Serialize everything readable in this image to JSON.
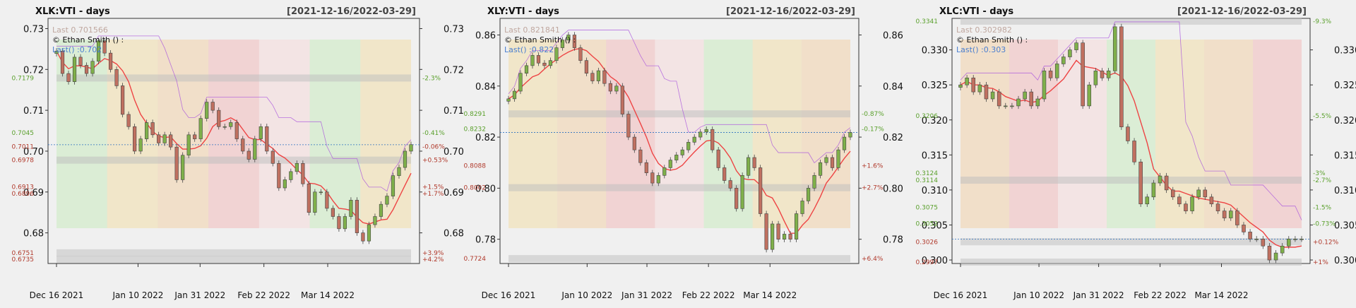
{
  "panels": [
    {
      "title": "XLK:VTI - days",
      "range": "[2021-12-16/2022-03-29]",
      "credit": "© Ethan Smith () :",
      "last_label": "Last 0.701566",
      "last_short": "Last() :0.702",
      "y_ticks": [
        "0.73",
        "0.72",
        "0.71",
        "0.70",
        "0.69",
        "0.68"
      ],
      "x_ticks": [
        "Dec 16 2021",
        "Jan 10 2022",
        "Jan 31 2022",
        "Feb 22 2022",
        "Mar 14 2022"
      ],
      "left_labels": [
        {
          "text": "0.7179",
          "color": "#5aa02c"
        },
        {
          "text": "0.7045",
          "color": "#5aa02c"
        },
        {
          "text": "0.7011",
          "color": "#b0392b"
        },
        {
          "text": "0.6978",
          "color": "#b0392b"
        },
        {
          "text": "0.6913",
          "color": "#b0392b"
        },
        {
          "text": "0.6896",
          "color": "#b0392b"
        },
        {
          "text": "0.6751",
          "color": "#b0392b"
        },
        {
          "text": "0.6735",
          "color": "#b0392b"
        }
      ],
      "right_labels": [
        {
          "text": "-2.3%",
          "color": "#5aa02c"
        },
        {
          "text": "-0.41%",
          "color": "#5aa02c"
        },
        {
          "text": "-0.06%",
          "color": "#b0392b"
        },
        {
          "text": "+0.53%",
          "color": "#b0392b"
        },
        {
          "text": "+1.5%",
          "color": "#b0392b"
        },
        {
          "text": "+1.7%",
          "color": "#b0392b"
        },
        {
          "text": "+3.9%",
          "color": "#b0392b"
        },
        {
          "text": "+4.2%",
          "color": "#b0392b"
        }
      ]
    },
    {
      "title": "XLY:VTI - days",
      "range": "[2021-12-16/2022-03-29]",
      "credit": "© Ethan Smith () :",
      "last_label": "Last 0.821841",
      "last_short": "Last() :0.822",
      "y_ticks": [
        "0.86",
        "0.84",
        "0.82",
        "0.80",
        "0.78"
      ],
      "x_ticks": [
        "Dec 16 2021",
        "Jan 10 2022",
        "Jan 31 2022",
        "Feb 22 2022",
        "Mar 14 2022"
      ],
      "left_labels": [
        {
          "text": "0.8291",
          "color": "#5aa02c"
        },
        {
          "text": "0.8232",
          "color": "#5aa02c"
        },
        {
          "text": "0.8088",
          "color": "#b0392b"
        },
        {
          "text": "0.8002",
          "color": "#b0392b"
        },
        {
          "text": "0.7724",
          "color": "#b0392b"
        }
      ],
      "right_labels": [
        {
          "text": "-0.87%",
          "color": "#5aa02c"
        },
        {
          "text": "-0.17%",
          "color": "#5aa02c"
        },
        {
          "text": "+1.6%",
          "color": "#b0392b"
        },
        {
          "text": "+2.7%",
          "color": "#b0392b"
        },
        {
          "text": "+6.4%",
          "color": "#b0392b"
        }
      ]
    },
    {
      "title": "XLC:VTI - days",
      "range": "[2021-12-16/2022-03-29]",
      "credit": "© Ethan Smith () :",
      "last_label": "Last 0.302982",
      "last_short": "Last() :0.303",
      "y_ticks": [
        "0.330",
        "0.325",
        "0.320",
        "0.315",
        "0.310",
        "0.305",
        "0.300"
      ],
      "x_ticks": [
        "Dec 16 2021",
        "Jan 10 2022",
        "Jan 31 2022",
        "Feb 22 2022",
        "Mar 14 2022"
      ],
      "left_labels": [
        {
          "text": "0.3341",
          "color": "#5aa02c"
        },
        {
          "text": "0.3206",
          "color": "#5aa02c"
        },
        {
          "text": "0.3124",
          "color": "#5aa02c"
        },
        {
          "text": "0.3114",
          "color": "#5aa02c"
        },
        {
          "text": "0.3075",
          "color": "#5aa02c"
        },
        {
          "text": "0.3052",
          "color": "#5aa02c"
        },
        {
          "text": "0.3026",
          "color": "#b0392b"
        },
        {
          "text": "0.2997",
          "color": "#b0392b"
        }
      ],
      "right_labels": [
        {
          "text": "-9.3%",
          "color": "#5aa02c"
        },
        {
          "text": "-5.5%",
          "color": "#5aa02c"
        },
        {
          "text": "-3%",
          "color": "#5aa02c"
        },
        {
          "text": "-2.7%",
          "color": "#5aa02c"
        },
        {
          "text": "-1.5%",
          "color": "#5aa02c"
        },
        {
          "text": "-0.73%",
          "color": "#5aa02c"
        },
        {
          "text": "+0.12%",
          "color": "#b0392b"
        },
        {
          "text": "+1%",
          "color": "#b0392b"
        }
      ]
    }
  ],
  "colors": {
    "up": "#7fb04a",
    "down": "#c07060",
    "ma": "#ee4444",
    "envelope": "#aa55dd",
    "last_line": "#2a6fbf"
  },
  "chart_data": [
    {
      "type": "candlestick",
      "title": "XLK:VTI - days",
      "xlim": [
        "2021-12-16",
        "2022-03-29"
      ],
      "ylim": [
        0.6725,
        0.7325
      ],
      "last": 0.701566,
      "support_resistance": [
        0.7179,
        0.7045,
        0.7011,
        0.6978,
        0.6913,
        0.6896,
        0.6751,
        0.6735
      ],
      "close": [
        0.7245,
        0.719,
        0.717,
        0.723,
        0.721,
        0.719,
        0.722,
        0.727,
        0.724,
        0.72,
        0.716,
        0.709,
        0.706,
        0.7,
        0.703,
        0.707,
        0.704,
        0.702,
        0.704,
        0.701,
        0.693,
        0.699,
        0.704,
        0.703,
        0.708,
        0.712,
        0.71,
        0.706,
        0.706,
        0.707,
        0.703,
        0.7,
        0.698,
        0.703,
        0.706,
        0.7,
        0.697,
        0.691,
        0.693,
        0.695,
        0.697,
        0.692,
        0.685,
        0.69,
        0.69,
        0.686,
        0.684,
        0.681,
        0.684,
        0.688,
        0.68,
        0.678,
        0.682,
        0.684,
        0.687,
        0.689,
        0.694,
        0.696,
        0.7,
        0.7016
      ]
    },
    {
      "type": "candlestick",
      "title": "XLY:VTI - days",
      "xlim": [
        "2021-12-16",
        "2022-03-29"
      ],
      "ylim": [
        0.7705,
        0.8665
      ],
      "last": 0.821841,
      "support_resistance": [
        0.8291,
        0.8232,
        0.8088,
        0.8002,
        0.7724
      ],
      "close": [
        0.835,
        0.838,
        0.845,
        0.848,
        0.852,
        0.849,
        0.848,
        0.85,
        0.855,
        0.858,
        0.86,
        0.855,
        0.85,
        0.845,
        0.842,
        0.846,
        0.841,
        0.838,
        0.84,
        0.829,
        0.82,
        0.815,
        0.81,
        0.806,
        0.802,
        0.805,
        0.808,
        0.811,
        0.813,
        0.815,
        0.818,
        0.82,
        0.822,
        0.823,
        0.815,
        0.808,
        0.803,
        0.8,
        0.792,
        0.805,
        0.812,
        0.808,
        0.79,
        0.776,
        0.786,
        0.78,
        0.782,
        0.78,
        0.79,
        0.795,
        0.8,
        0.805,
        0.81,
        0.812,
        0.808,
        0.815,
        0.82,
        0.8218
      ]
    },
    {
      "type": "candlestick",
      "title": "XLC:VTI - days",
      "xlim": [
        "2021-12-16",
        "2022-03-29"
      ],
      "ylim": [
        0.2995,
        0.3345
      ],
      "last": 0.302982,
      "support_resistance": [
        0.3341,
        0.3206,
        0.3124,
        0.3114,
        0.3075,
        0.3052,
        0.3026,
        0.2997
      ],
      "close": [
        0.325,
        0.326,
        0.324,
        0.325,
        0.323,
        0.324,
        0.322,
        0.322,
        0.322,
        0.323,
        0.324,
        0.322,
        0.323,
        0.327,
        0.326,
        0.328,
        0.329,
        0.33,
        0.331,
        0.322,
        0.325,
        0.327,
        0.326,
        0.327,
        0.3333,
        0.319,
        0.317,
        0.314,
        0.308,
        0.309,
        0.311,
        0.312,
        0.31,
        0.309,
        0.308,
        0.307,
        0.309,
        0.31,
        0.309,
        0.308,
        0.307,
        0.306,
        0.307,
        0.305,
        0.304,
        0.303,
        0.303,
        0.302,
        0.3,
        0.301,
        0.302,
        0.303,
        0.303,
        0.303
      ]
    }
  ]
}
